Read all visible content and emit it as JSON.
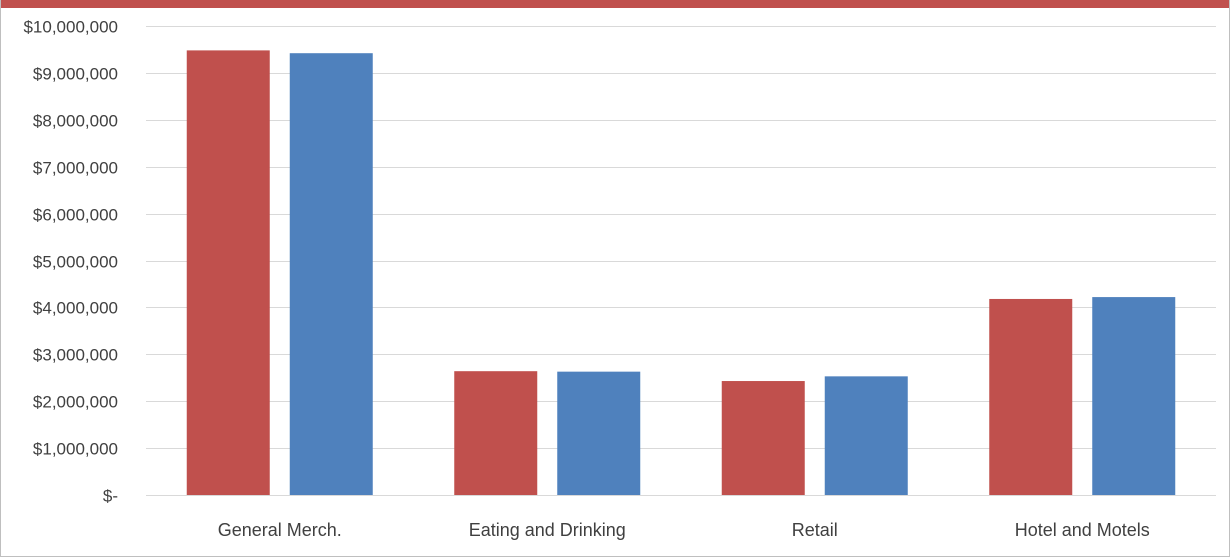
{
  "colors": {
    "accent_bar": "#c0504d",
    "series_1": "#c0504d",
    "series_2": "#4f81bd",
    "gridline": "#d9d9d9",
    "text": "#404040"
  },
  "chart_data": {
    "type": "bar",
    "categories": [
      "General Merch.",
      "Eating and Drinking",
      "Retail",
      "Hotel and Motels"
    ],
    "series": [
      {
        "values": [
          9480000,
          2640000,
          2430000,
          4180000
        ]
      },
      {
        "values": [
          9420000,
          2630000,
          2530000,
          4220000
        ]
      }
    ],
    "ylim": [
      0,
      10000000
    ],
    "y_ticks": [
      0,
      1000000,
      2000000,
      3000000,
      4000000,
      5000000,
      6000000,
      7000000,
      8000000,
      9000000,
      10000000
    ],
    "y_tick_labels": [
      "$-",
      "$1,000,000",
      "$2,000,000",
      "$3,000,000",
      "$4,000,000",
      "$5,000,000",
      "$6,000,000",
      "$7,000,000",
      "$8,000,000",
      "$9,000,000",
      "$10,000,000"
    ],
    "grid": true,
    "legend": "none"
  }
}
